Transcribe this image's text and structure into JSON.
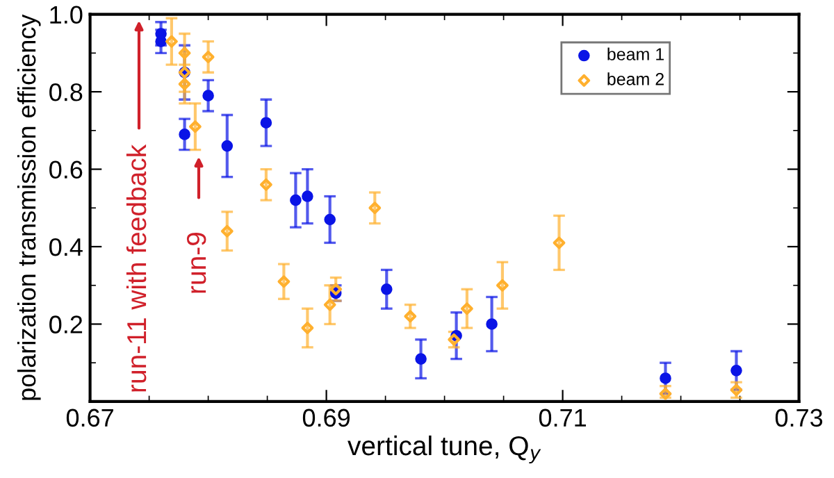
{
  "chart_data": {
    "type": "scatter",
    "xlabel": "vertical tune, Q$_{y}$",
    "ylabel": "polarization transmission efficiency",
    "xlim": [
      0.67,
      0.73
    ],
    "xticks": [
      0.67,
      0.69,
      0.71,
      0.73
    ],
    "ylim": [
      0,
      1.0
    ],
    "yticks": [
      {
        "value": 0,
        "label": null
      },
      0.2,
      0.4,
      0.6,
      0.8,
      {
        "value": 1.0,
        "label": "1.0"
      }
    ],
    "grid": false,
    "legend": "top right",
    "series": [
      {
        "name": "beam 1",
        "color": "#0a14e6",
        "marker": "circle",
        "x": [
          0.676,
          0.676,
          0.678,
          0.678,
          0.68,
          0.6816,
          0.6849,
          0.6874,
          0.6884,
          0.6903,
          0.6908,
          0.6951,
          0.698,
          0.701,
          0.704,
          0.7187,
          0.7247
        ],
        "values": [
          0.95,
          0.93,
          0.85,
          0.69,
          0.79,
          0.66,
          0.72,
          0.52,
          0.53,
          0.47,
          0.28,
          0.29,
          0.11,
          0.17,
          0.2,
          0.06,
          0.08
        ],
        "errors": [
          0.03,
          0.03,
          0.07,
          0.04,
          0.04,
          0.08,
          0.06,
          0.07,
          0.07,
          0.06,
          0.02,
          0.05,
          0.05,
          0.06,
          0.07,
          0.04,
          0.05
        ]
      },
      {
        "name": "beam 2",
        "color": "#ffb02e",
        "marker": "diamond",
        "x": [
          0.6769,
          0.678,
          0.678,
          0.678,
          0.68,
          0.6789,
          0.6849,
          0.6816,
          0.6864,
          0.6884,
          0.6903,
          0.6908,
          0.6941,
          0.6971,
          0.7008,
          0.7019,
          0.7049,
          0.7097,
          0.7187,
          0.7247
        ],
        "values": [
          0.93,
          0.9,
          0.85,
          0.82,
          0.89,
          0.71,
          0.56,
          0.44,
          0.31,
          0.19,
          0.25,
          0.29,
          0.5,
          0.22,
          0.16,
          0.24,
          0.3,
          0.41,
          0.02,
          0.03
        ],
        "errors": [
          0.06,
          0.05,
          0.05,
          0.05,
          0.04,
          0.06,
          0.04,
          0.05,
          0.045,
          0.05,
          0.05,
          0.03,
          0.04,
          0.03,
          0.02,
          0.05,
          0.06,
          0.07,
          [
            0.01,
            0.04
          ],
          [
            0.01,
            0.05
          ]
        ]
      }
    ],
    "annotations": [
      "run-11 with feedback",
      "run-9"
    ]
  }
}
